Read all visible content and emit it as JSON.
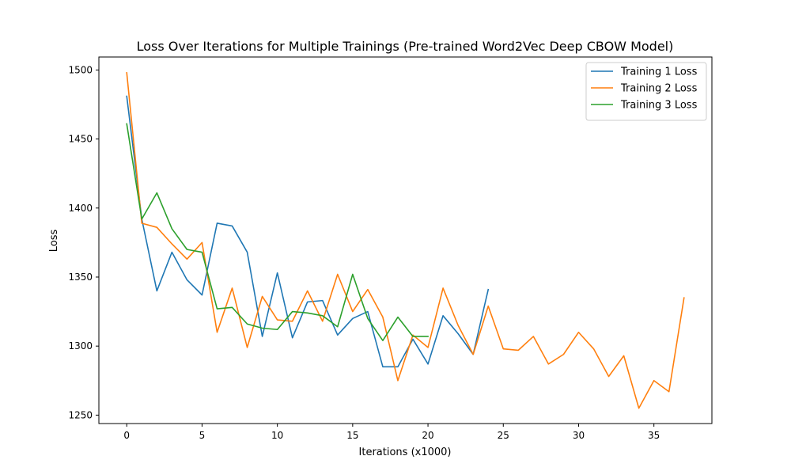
{
  "chart_data": {
    "type": "line",
    "title": "Loss Over Iterations for Multiple Trainings (Pre-trained Word2Vec Deep CBOW Model)",
    "xlabel": "Iterations (x1000)",
    "ylabel": "Loss",
    "xlim": [
      -1.85,
      38.85
    ],
    "ylim": [
      1243.9,
      1509.4
    ],
    "xticks": [
      0,
      5,
      10,
      15,
      20,
      25,
      30,
      35
    ],
    "yticks": [
      1250,
      1300,
      1350,
      1400,
      1450,
      1500
    ],
    "grid": false,
    "legend_position": "top-right",
    "series": [
      {
        "name": "Training 1 Loss",
        "color": "#1f77b4",
        "x": [
          0,
          1,
          2,
          3,
          4,
          5,
          6,
          7,
          8,
          9,
          10,
          11,
          12,
          13,
          14,
          15,
          16,
          17,
          18,
          19,
          20,
          21,
          22,
          23,
          24
        ],
        "values": [
          1481,
          1392,
          1340,
          1368,
          1348,
          1337,
          1389,
          1387,
          1368,
          1307,
          1353,
          1306,
          1332,
          1333,
          1308,
          1320,
          1325,
          1285,
          1285,
          1305,
          1287,
          1322,
          1309,
          1294,
          1341
        ]
      },
      {
        "name": "Training 2 Loss",
        "color": "#ff7f0e",
        "x": [
          0,
          1,
          2,
          3,
          4,
          5,
          6,
          7,
          8,
          9,
          10,
          11,
          12,
          13,
          14,
          15,
          16,
          17,
          18,
          19,
          20,
          21,
          22,
          23,
          24,
          25,
          26,
          27,
          28,
          29,
          30,
          31,
          32,
          33,
          34,
          35,
          36,
          37
        ],
        "values": [
          1498,
          1389,
          1386,
          1374,
          1363,
          1375,
          1310,
          1342,
          1299,
          1336,
          1319,
          1318,
          1340,
          1318,
          1352,
          1325,
          1341,
          1321,
          1275,
          1308,
          1299,
          1342,
          1315,
          1294,
          1329,
          1298,
          1297,
          1307,
          1287,
          1294,
          1310,
          1298,
          1278,
          1293,
          1255,
          1275,
          1267,
          1335
        ]
      },
      {
        "name": "Training 3 Loss",
        "color": "#2ca02c",
        "x": [
          0,
          1,
          2,
          3,
          4,
          5,
          6,
          7,
          8,
          9,
          10,
          11,
          12,
          13,
          14,
          15,
          16,
          17,
          18,
          19,
          20
        ],
        "values": [
          1461,
          1392,
          1411,
          1385,
          1370,
          1368,
          1327,
          1328,
          1316,
          1313,
          1312,
          1325,
          1324,
          1322,
          1314,
          1352,
          1320,
          1304,
          1321,
          1307,
          1307
        ]
      }
    ]
  }
}
